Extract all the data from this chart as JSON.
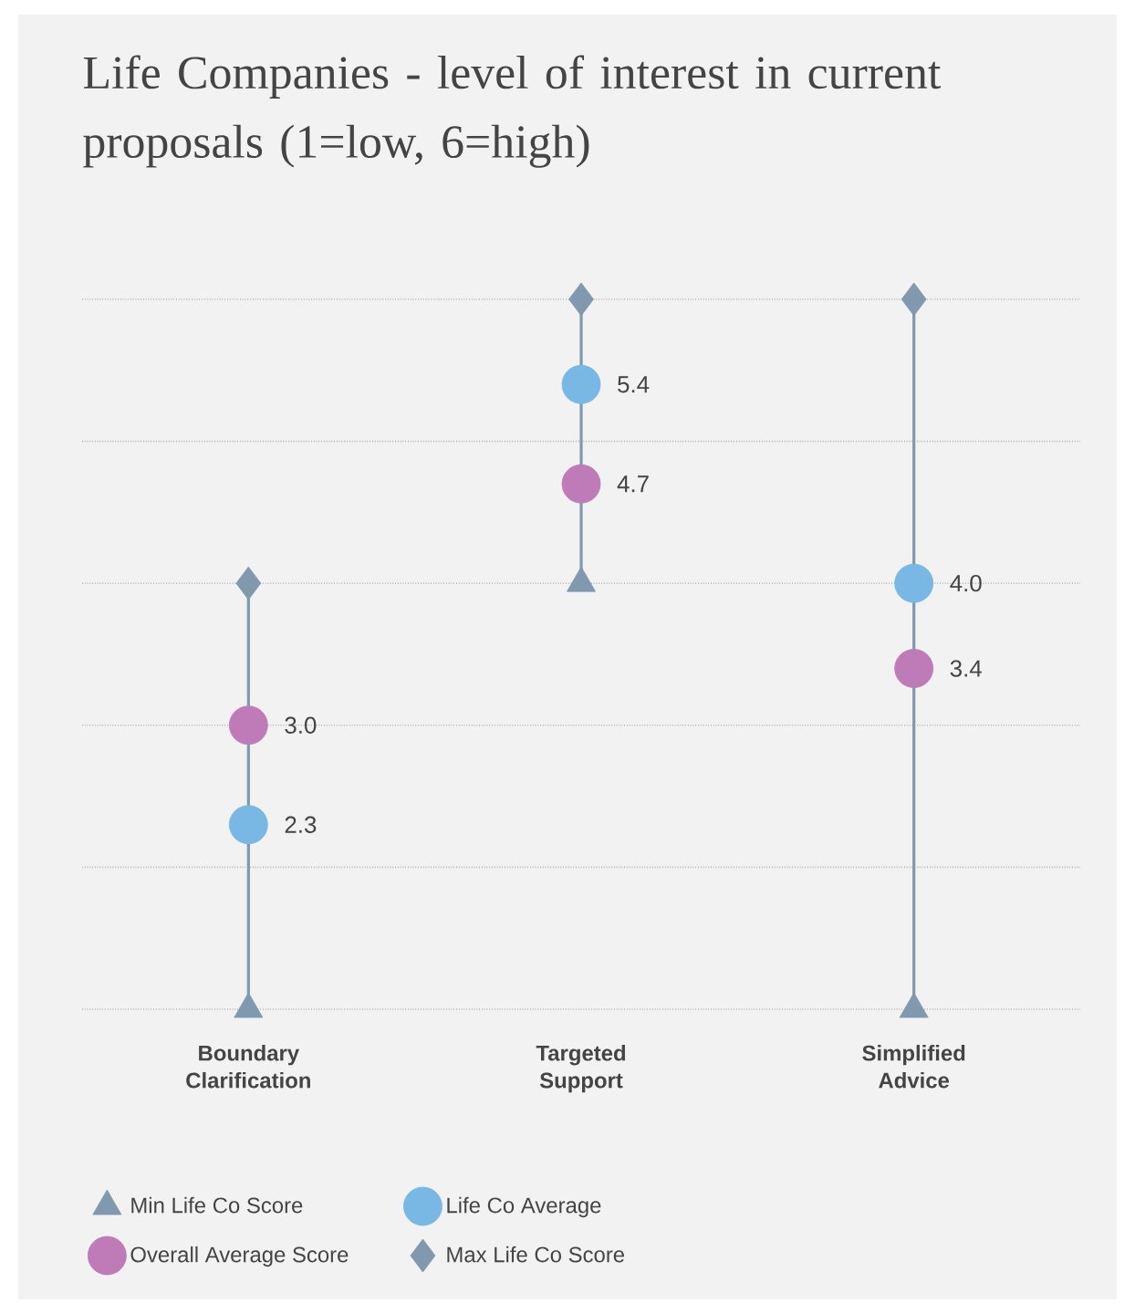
{
  "chart_data": {
    "type": "scatter",
    "title": "Life Companies - level of interest in current proposals (1=low, 6=high)",
    "categories": [
      "Boundary Clarification",
      "Targeted Support",
      "Simplified Advice"
    ],
    "ylim": [
      1,
      6
    ],
    "yticks": [
      {
        "value": 1,
        "label": null
      },
      {
        "value": 2,
        "label": null
      },
      {
        "value": 3,
        "label": null
      },
      {
        "value": 4,
        "label": null
      },
      {
        "value": 5,
        "label": null
      },
      {
        "value": 6,
        "label": null
      }
    ],
    "grid": "y",
    "legend": "bottom",
    "series": [
      {
        "name": "Min Life Co Score",
        "color": "#8099ae",
        "marker": "triangle",
        "values": [
          1,
          4,
          1
        ]
      },
      {
        "name": "Life Co Average",
        "color": "#79b8e5",
        "marker": "circle",
        "values": [
          2.3,
          5.4,
          4.0
        ],
        "value_labels": [
          "2.3",
          "5.4",
          "4.0"
        ]
      },
      {
        "name": "Overall Average Score",
        "color": "#bf7bb8",
        "marker": "circle",
        "values": [
          3.0,
          4.7,
          3.4
        ],
        "value_labels": [
          "3.0",
          "4.7",
          "3.4"
        ]
      },
      {
        "name": "Max Life Co Score",
        "color": "#8099ae",
        "marker": "diamond",
        "values": [
          4,
          6,
          6
        ]
      }
    ]
  }
}
